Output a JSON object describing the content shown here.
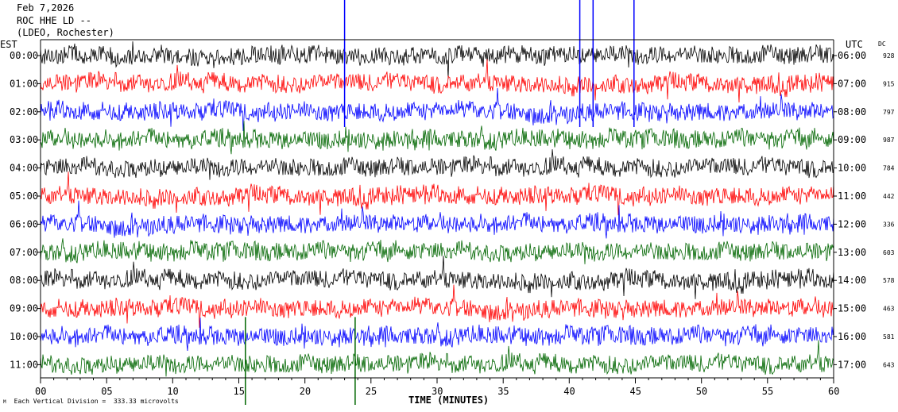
{
  "header": {
    "date": "Feb 7,2026",
    "station": "ROC HHE LD --",
    "network": "(LDEO, Rochester)"
  },
  "labels": {
    "left_tz": "EST",
    "right_tz": "UTC",
    "dc": "DC",
    "xlabel": "TIME (MINUTES)",
    "scale_note": "Each Vertical Division =  333.33 microvolts",
    "corner_mark": "M"
  },
  "colors": {
    "trace_cycle": [
      "#000000",
      "#ff0000",
      "#0000ff",
      "#006600"
    ],
    "axis": "#000000",
    "background": "#ffffff"
  },
  "chart_data": {
    "type": "line",
    "title": "ROC HHE LD --",
    "xlabel": "TIME (MINUTES)",
    "xlim": [
      0,
      60
    ],
    "x_ticks": [
      "00",
      "05",
      "10",
      "15",
      "20",
      "25",
      "30",
      "35",
      "40",
      "45",
      "50",
      "55",
      "60"
    ],
    "rows": [
      {
        "est": "00:00",
        "utc": "06:00",
        "dc": "928",
        "color": "#000000"
      },
      {
        "est": "01:00",
        "utc": "07:00",
        "dc": "915",
        "color": "#ff0000"
      },
      {
        "est": "02:00",
        "utc": "08:00",
        "dc": "797",
        "color": "#0000ff"
      },
      {
        "est": "03:00",
        "utc": "09:00",
        "dc": "987",
        "color": "#006600"
      },
      {
        "est": "04:00",
        "utc": "10:00",
        "dc": "784",
        "color": "#000000"
      },
      {
        "est": "05:00",
        "utc": "11:00",
        "dc": "442",
        "color": "#ff0000"
      },
      {
        "est": "06:00",
        "utc": "12:00",
        "dc": "336",
        "color": "#0000ff"
      },
      {
        "est": "07:00",
        "utc": "13:00",
        "dc": "603",
        "color": "#006600"
      },
      {
        "est": "08:00",
        "utc": "14:00",
        "dc": "578",
        "color": "#000000"
      },
      {
        "est": "09:00",
        "utc": "15:00",
        "dc": "463",
        "color": "#ff0000"
      },
      {
        "est": "10:00",
        "utc": "16:00",
        "dc": "581",
        "color": "#0000ff"
      },
      {
        "est": "11:00",
        "utc": "17:00",
        "dc": "643",
        "color": "#006600"
      }
    ],
    "spikes": [
      {
        "row": 0,
        "minute": 23.0,
        "color": "#0000ff"
      },
      {
        "row": 0,
        "minute": 40.8,
        "color": "#0000ff"
      },
      {
        "row": 0,
        "minute": 41.8,
        "color": "#0000ff"
      },
      {
        "row": 0,
        "minute": 44.9,
        "color": "#0000ff"
      },
      {
        "row": 11,
        "minute": 23.8,
        "color": "#006600"
      },
      {
        "row": 11,
        "minute": 15.5,
        "color": "#006600"
      }
    ]
  }
}
